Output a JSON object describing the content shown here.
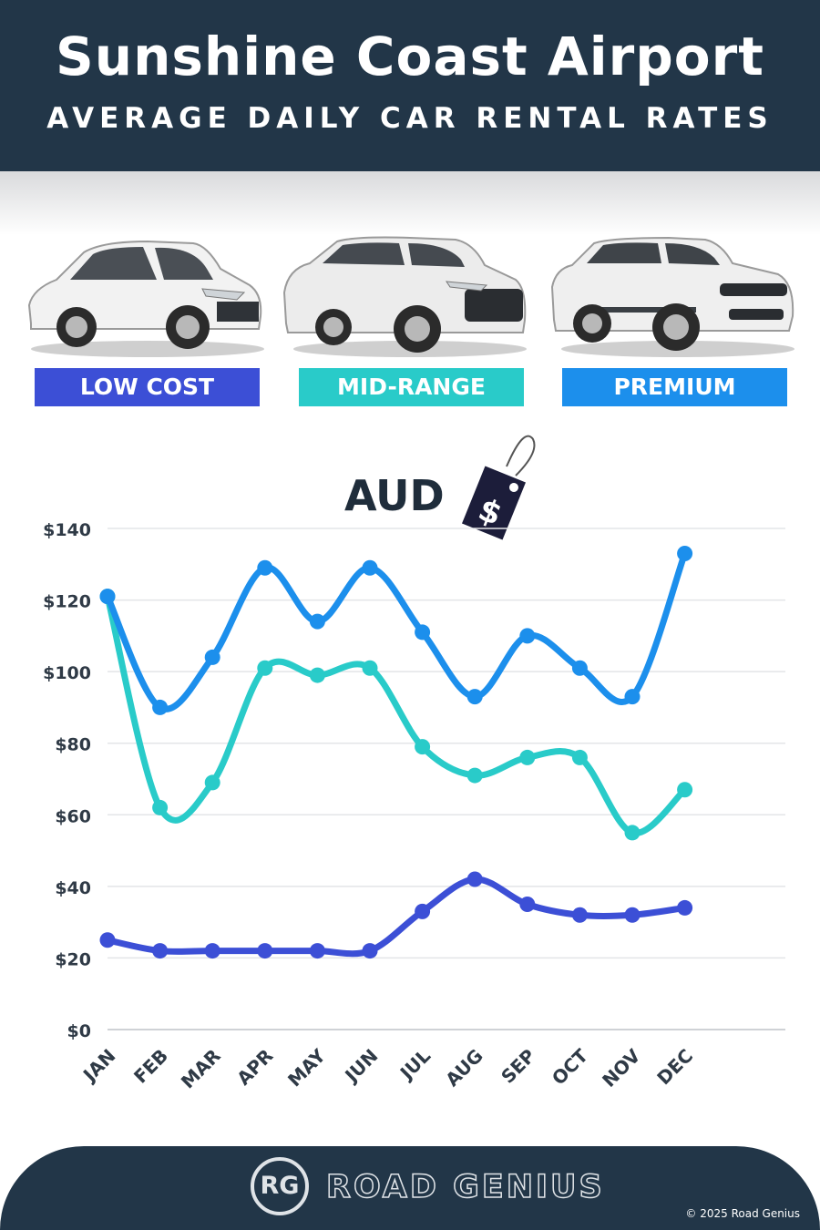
{
  "header": {
    "title": "Sunshine Coast Airport",
    "subtitle": "AVERAGE DAILY CAR RENTAL RATES"
  },
  "categories_bar": [
    {
      "label": "LOW COST",
      "color": "#3c4fd6"
    },
    {
      "label": "MID-RANGE",
      "color": "#29cbc9"
    },
    {
      "label": "PREMIUM",
      "color": "#1c8fec"
    }
  ],
  "currency": {
    "label": "AUD",
    "tag_symbol": "$"
  },
  "chart_data": {
    "type": "line",
    "categories": [
      "JAN",
      "FEB",
      "MAR",
      "APR",
      "MAY",
      "JUN",
      "JUL",
      "AUG",
      "SEP",
      "OCT",
      "NOV",
      "DEC"
    ],
    "series": [
      {
        "name": "LOW COST",
        "color": "#3c4fd6",
        "values": [
          25,
          22,
          22,
          22,
          22,
          22,
          33,
          42,
          35,
          32,
          32,
          34
        ]
      },
      {
        "name": "MID-RANGE",
        "color": "#29cbc9",
        "values": [
          121,
          62,
          69,
          101,
          99,
          101,
          79,
          71,
          76,
          76,
          55,
          67
        ]
      },
      {
        "name": "PREMIUM",
        "color": "#1c8fec",
        "values": [
          121,
          90,
          104,
          129,
          114,
          129,
          111,
          93,
          110,
          101,
          93,
          133
        ]
      }
    ],
    "y_ticks": [
      "$0",
      "$20",
      "$40",
      "$60",
      "$80",
      "$100",
      "$120",
      "$140"
    ],
    "ylim": [
      0,
      140
    ],
    "grid": true
  },
  "footer": {
    "logo_text": "RG",
    "brand": "ROAD GENIUS",
    "copyright": "© 2025 Road Genius"
  }
}
